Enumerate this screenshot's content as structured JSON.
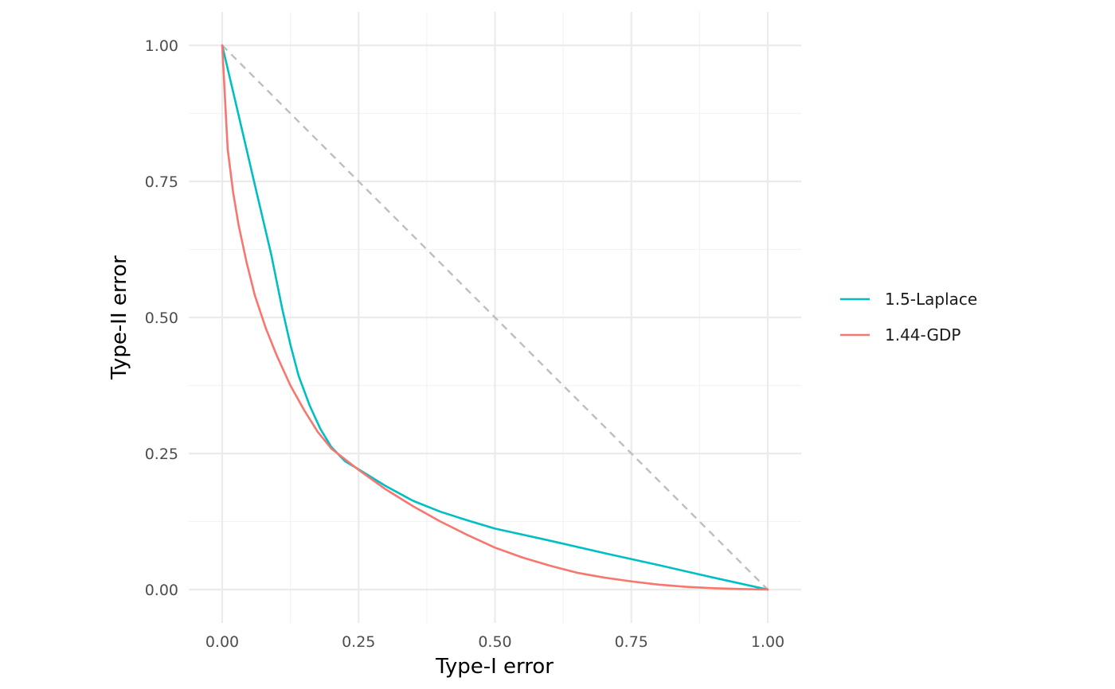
{
  "chart_data": {
    "type": "line",
    "title": "",
    "xlabel": "Type-I error",
    "ylabel": "Type-II error",
    "xlim": [
      -0.05,
      1.05
    ],
    "ylim": [
      -0.05,
      1.05
    ],
    "x_ticks": [
      0,
      0.25,
      0.5,
      0.75,
      1
    ],
    "x_tick_labels": [
      "0.00",
      "0.25",
      "0.50",
      "0.75",
      "1.00"
    ],
    "y_ticks": [
      0,
      0.25,
      0.5,
      0.75,
      1
    ],
    "y_tick_labels": [
      "0.00",
      "0.25",
      "0.50",
      "0.75",
      "1.00"
    ],
    "grid": true,
    "legend_position": "right",
    "reference_line": {
      "style": "dashed",
      "color": "#bebebe",
      "points": [
        [
          0,
          1
        ],
        [
          1,
          0
        ]
      ]
    },
    "series": [
      {
        "name": "1.5-Laplace",
        "color": "#00bfc4",
        "points": [
          [
            0.0,
            1.0
          ],
          [
            0.03,
            0.872
          ],
          [
            0.06,
            0.743
          ],
          [
            0.09,
            0.615
          ],
          [
            0.11,
            0.516
          ],
          [
            0.125,
            0.45
          ],
          [
            0.14,
            0.393
          ],
          [
            0.16,
            0.339
          ],
          [
            0.18,
            0.295
          ],
          [
            0.2,
            0.262
          ],
          [
            0.225,
            0.236
          ],
          [
            0.25,
            0.221
          ],
          [
            0.3,
            0.19
          ],
          [
            0.35,
            0.163
          ],
          [
            0.4,
            0.143
          ],
          [
            0.45,
            0.127
          ],
          [
            0.5,
            0.112
          ],
          [
            0.6,
            0.09
          ],
          [
            0.7,
            0.067
          ],
          [
            0.8,
            0.045
          ],
          [
            0.9,
            0.022
          ],
          [
            1.0,
            0.0
          ]
        ]
      },
      {
        "name": "1.44-GDP",
        "color": "#f8766d",
        "points": [
          [
            0.0,
            1.0
          ],
          [
            0.01,
            0.81
          ],
          [
            0.02,
            0.73
          ],
          [
            0.03,
            0.67
          ],
          [
            0.045,
            0.6
          ],
          [
            0.06,
            0.54
          ],
          [
            0.08,
            0.48
          ],
          [
            0.1,
            0.43
          ],
          [
            0.125,
            0.375
          ],
          [
            0.15,
            0.33
          ],
          [
            0.175,
            0.29
          ],
          [
            0.2,
            0.259
          ],
          [
            0.25,
            0.22
          ],
          [
            0.3,
            0.184
          ],
          [
            0.35,
            0.153
          ],
          [
            0.4,
            0.125
          ],
          [
            0.45,
            0.1
          ],
          [
            0.5,
            0.077
          ],
          [
            0.55,
            0.059
          ],
          [
            0.6,
            0.044
          ],
          [
            0.65,
            0.031
          ],
          [
            0.7,
            0.022
          ],
          [
            0.75,
            0.015
          ],
          [
            0.8,
            0.009
          ],
          [
            0.85,
            0.005
          ],
          [
            0.9,
            0.0025
          ],
          [
            0.95,
            0.001
          ],
          [
            1.0,
            0.0
          ]
        ]
      }
    ]
  }
}
